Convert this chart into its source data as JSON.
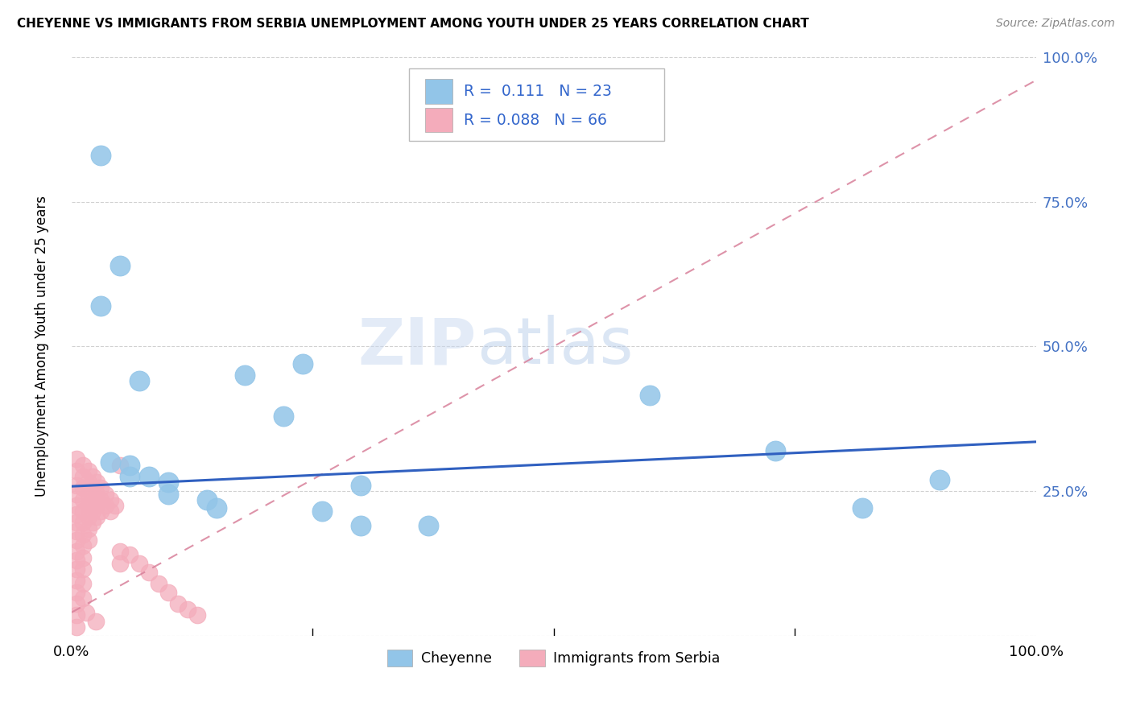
{
  "title": "CHEYENNE VS IMMIGRANTS FROM SERBIA UNEMPLOYMENT AMONG YOUTH UNDER 25 YEARS CORRELATION CHART",
  "source": "Source: ZipAtlas.com",
  "ylabel": "Unemployment Among Youth under 25 years",
  "xlim": [
    0,
    1
  ],
  "ylim": [
    0,
    1
  ],
  "yticks": [
    0.0,
    0.25,
    0.5,
    0.75,
    1.0
  ],
  "ytick_labels": [
    "",
    "25.0%",
    "50.0%",
    "75.0%",
    "100.0%"
  ],
  "cheyenne_color": "#92C5E8",
  "serbia_color": "#F4ACBB",
  "cheyenne_R": 0.111,
  "cheyenne_N": 23,
  "serbia_R": 0.088,
  "serbia_N": 66,
  "watermark_zip": "ZIP",
  "watermark_atlas": "atlas",
  "legend_label_1": "Cheyenne",
  "legend_label_2": "Immigrants from Serbia",
  "cheyenne_points": [
    [
      0.03,
      0.83
    ],
    [
      0.05,
      0.64
    ],
    [
      0.03,
      0.57
    ],
    [
      0.07,
      0.44
    ],
    [
      0.04,
      0.3
    ],
    [
      0.06,
      0.295
    ],
    [
      0.06,
      0.275
    ],
    [
      0.08,
      0.275
    ],
    [
      0.1,
      0.265
    ],
    [
      0.1,
      0.245
    ],
    [
      0.14,
      0.235
    ],
    [
      0.15,
      0.22
    ],
    [
      0.18,
      0.45
    ],
    [
      0.22,
      0.38
    ],
    [
      0.24,
      0.47
    ],
    [
      0.26,
      0.215
    ],
    [
      0.3,
      0.26
    ],
    [
      0.3,
      0.19
    ],
    [
      0.37,
      0.19
    ],
    [
      0.6,
      0.415
    ],
    [
      0.73,
      0.32
    ],
    [
      0.82,
      0.22
    ],
    [
      0.9,
      0.27
    ]
  ],
  "serbia_points": [
    [
      0.005,
      0.305
    ],
    [
      0.005,
      0.285
    ],
    [
      0.005,
      0.26
    ],
    [
      0.005,
      0.245
    ],
    [
      0.005,
      0.225
    ],
    [
      0.005,
      0.21
    ],
    [
      0.005,
      0.195
    ],
    [
      0.005,
      0.18
    ],
    [
      0.005,
      0.165
    ],
    [
      0.005,
      0.145
    ],
    [
      0.005,
      0.13
    ],
    [
      0.005,
      0.115
    ],
    [
      0.005,
      0.095
    ],
    [
      0.005,
      0.075
    ],
    [
      0.005,
      0.055
    ],
    [
      0.005,
      0.035
    ],
    [
      0.005,
      0.015
    ],
    [
      0.012,
      0.295
    ],
    [
      0.012,
      0.275
    ],
    [
      0.012,
      0.255
    ],
    [
      0.012,
      0.235
    ],
    [
      0.012,
      0.215
    ],
    [
      0.012,
      0.195
    ],
    [
      0.012,
      0.175
    ],
    [
      0.012,
      0.155
    ],
    [
      0.012,
      0.135
    ],
    [
      0.012,
      0.115
    ],
    [
      0.012,
      0.09
    ],
    [
      0.012,
      0.065
    ],
    [
      0.018,
      0.285
    ],
    [
      0.018,
      0.265
    ],
    [
      0.018,
      0.245
    ],
    [
      0.018,
      0.225
    ],
    [
      0.018,
      0.205
    ],
    [
      0.018,
      0.185
    ],
    [
      0.018,
      0.165
    ],
    [
      0.022,
      0.275
    ],
    [
      0.022,
      0.255
    ],
    [
      0.022,
      0.235
    ],
    [
      0.022,
      0.215
    ],
    [
      0.022,
      0.195
    ],
    [
      0.026,
      0.265
    ],
    [
      0.026,
      0.245
    ],
    [
      0.026,
      0.225
    ],
    [
      0.026,
      0.205
    ],
    [
      0.03,
      0.255
    ],
    [
      0.03,
      0.235
    ],
    [
      0.03,
      0.215
    ],
    [
      0.035,
      0.245
    ],
    [
      0.035,
      0.225
    ],
    [
      0.04,
      0.235
    ],
    [
      0.04,
      0.215
    ],
    [
      0.045,
      0.225
    ],
    [
      0.05,
      0.295
    ],
    [
      0.05,
      0.145
    ],
    [
      0.05,
      0.125
    ],
    [
      0.06,
      0.14
    ],
    [
      0.07,
      0.125
    ],
    [
      0.08,
      0.11
    ],
    [
      0.09,
      0.09
    ],
    [
      0.1,
      0.075
    ],
    [
      0.11,
      0.055
    ],
    [
      0.12,
      0.045
    ],
    [
      0.13,
      0.035
    ],
    [
      0.015,
      0.04
    ],
    [
      0.025,
      0.025
    ]
  ],
  "cheyenne_trend_x": [
    0.0,
    1.0
  ],
  "cheyenne_trend_y": [
    0.258,
    0.335
  ],
  "serbia_trend_x": [
    0.0,
    1.0
  ],
  "serbia_trend_y": [
    0.04,
    0.96
  ],
  "trend_color_blue": "#3060C0",
  "trend_color_pink": "#D8809A",
  "grid_color": "#CCCCCC"
}
